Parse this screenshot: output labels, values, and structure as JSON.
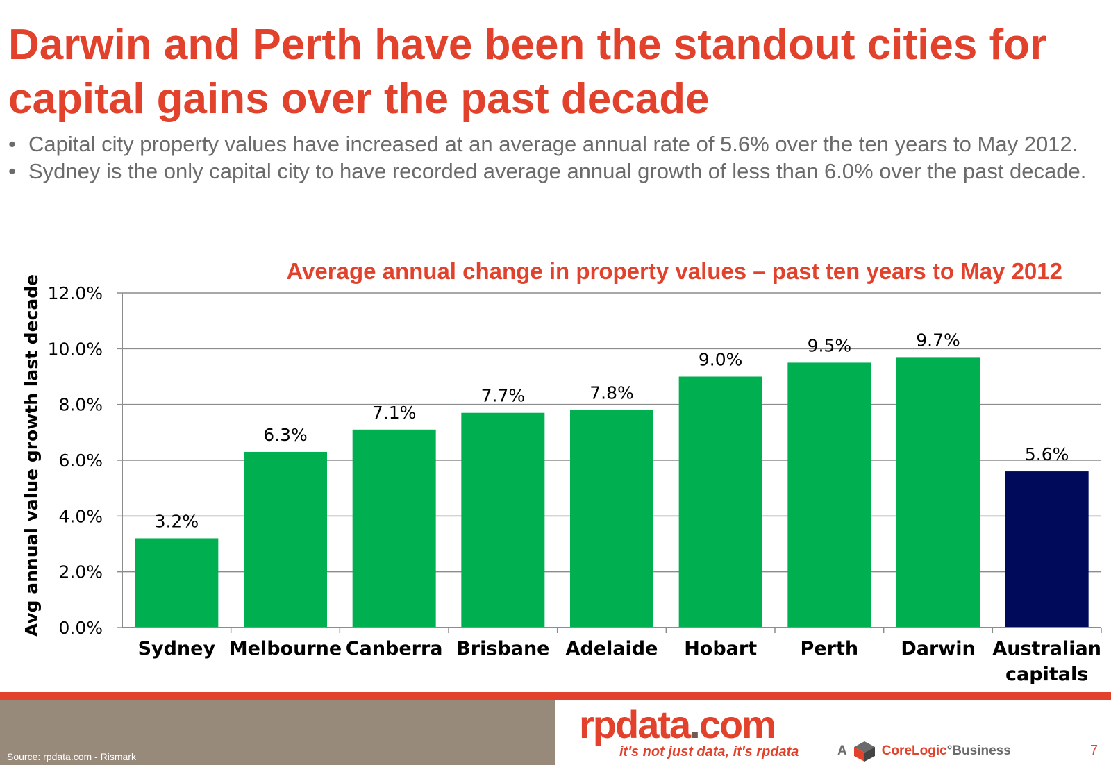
{
  "slide": {
    "title": "Darwin and Perth have been the standout cities for capital gains over the past decade",
    "bullet_char": "•",
    "bullets": [
      "Capital city property values have increased at an average annual rate of 5.6% over the ten years to May 2012.",
      "Sydney is the only capital city to have recorded average annual growth of less than 6.0% over the past decade."
    ],
    "page_number": "7"
  },
  "chart_data": {
    "type": "bar",
    "title": "Average annual change in property values – past ten years to May 2012",
    "ylabel": "Avg annual value growth last decade",
    "xlabel": "",
    "ylim": [
      0,
      12
    ],
    "yticks": [
      0,
      2,
      4,
      6,
      8,
      10,
      12
    ],
    "ytick_labels": [
      "0.0%",
      "2.0%",
      "4.0%",
      "6.0%",
      "8.0%",
      "10.0%",
      "12.0%"
    ],
    "grid": true,
    "categories": [
      [
        "Sydney"
      ],
      [
        "Melbourne"
      ],
      [
        "Canberra"
      ],
      [
        "Brisbane"
      ],
      [
        "Adelaide"
      ],
      [
        "Hobart"
      ],
      [
        "Perth"
      ],
      [
        "Darwin"
      ],
      [
        "Australian",
        "capitals"
      ]
    ],
    "values": [
      3.2,
      6.3,
      7.1,
      7.7,
      7.8,
      9.0,
      9.5,
      9.7,
      5.6
    ],
    "data_labels": [
      "3.2%",
      "6.3%",
      "7.1%",
      "7.7%",
      "7.8%",
      "9.0%",
      "9.5%",
      "9.7%",
      "5.6%"
    ],
    "colors": [
      "#00b050",
      "#00b050",
      "#00b050",
      "#00b050",
      "#00b050",
      "#00b050",
      "#00b050",
      "#00b050",
      "#000a5a"
    ]
  },
  "footer": {
    "source": "Source:  rpdata.com - Rismark",
    "logo_main": "rpdata",
    "logo_dot": ".",
    "logo_com": "com",
    "tagline": "it's not just data, it's rpdata",
    "corelogic_prefix": "A",
    "corelogic_core": "CoreLogic",
    "corelogic_mark": "°",
    "corelogic_business": " Business",
    "brand_colors": {
      "red": "#e2412b",
      "grey": "#988a7b"
    }
  }
}
